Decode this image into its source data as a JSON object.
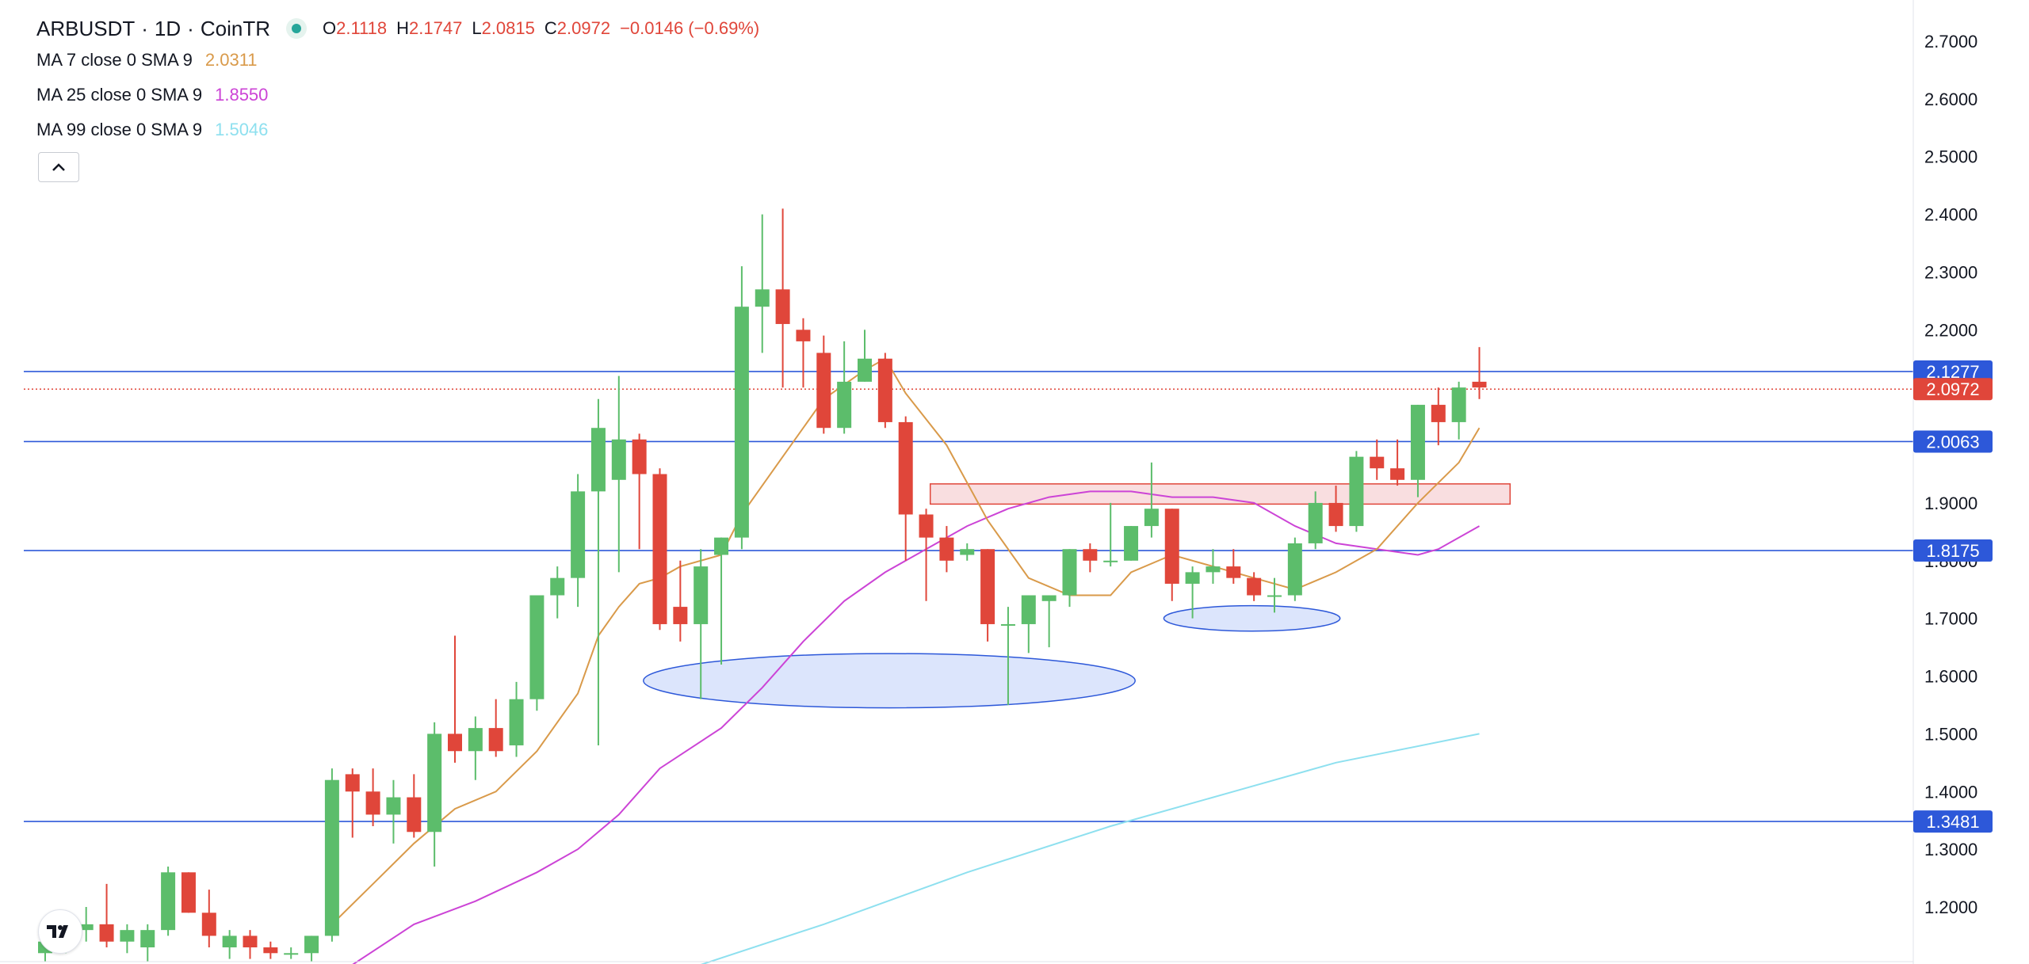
{
  "header": {
    "symbol": "ARBUSDT",
    "interval": "1D",
    "exchange": "CoinTR",
    "sep": "·",
    "ohlc": [
      {
        "key": "O",
        "value": "2.1118"
      },
      {
        "key": "H",
        "value": "2.1747"
      },
      {
        "key": "L",
        "value": "2.0815"
      },
      {
        "key": "C",
        "value": "2.0972"
      },
      {
        "key": "",
        "value": "−0.0146 (−0.69%)"
      }
    ]
  },
  "indicators": [
    {
      "label": "MA 7 close 0 SMA 9",
      "value": "2.0311",
      "color": "#d99a4a"
    },
    {
      "label": "MA 25 close 0 SMA 9",
      "value": "1.8550",
      "color": "#cc44d6"
    },
    {
      "label": "MA 99 close 0 SMA 9",
      "value": "1.5046",
      "color": "#8ee0ef"
    }
  ],
  "collapse_icon": "chevron-up-icon",
  "logo_icon": "tradingview-logo-icon",
  "colors": {
    "up": "#5cbd6b",
    "down": "#e0463a",
    "hline": "#2d58d9",
    "current": "#e0463a",
    "zone_fill": "#f7d3d6",
    "zone_stroke": "#e0463a",
    "ellipse_fill": "#d6e0fb",
    "ellipse_stroke": "#2d58d9"
  },
  "chart_data": {
    "type": "candlestick",
    "y_axis": {
      "min": 1.1,
      "max": 2.76,
      "ticks": [
        "2.7000",
        "2.6000",
        "2.5000",
        "2.4000",
        "2.3000",
        "2.2000",
        "1.9000",
        "1.8000",
        "1.7000",
        "1.6000",
        "1.5000",
        "1.4000",
        "1.3000",
        "1.2000"
      ]
    },
    "price_labels": [
      {
        "value": 2.1277,
        "text": "2.1277",
        "kind": "line"
      },
      {
        "value": 2.0972,
        "text": "2.0972",
        "kind": "current"
      },
      {
        "value": 2.0063,
        "text": "2.0063",
        "kind": "line"
      },
      {
        "value": 1.8175,
        "text": "1.8175",
        "kind": "line"
      },
      {
        "value": 1.3481,
        "text": "1.3481",
        "kind": "line"
      }
    ],
    "candles": [
      [
        1.12,
        1.15,
        1.1,
        1.14
      ],
      [
        1.14,
        1.17,
        1.12,
        1.16
      ],
      [
        1.16,
        1.2,
        1.14,
        1.17
      ],
      [
        1.17,
        1.24,
        1.13,
        1.14
      ],
      [
        1.14,
        1.17,
        1.12,
        1.16
      ],
      [
        1.13,
        1.17,
        1.1,
        1.16
      ],
      [
        1.16,
        1.27,
        1.15,
        1.26
      ],
      [
        1.26,
        1.26,
        1.19,
        1.19
      ],
      [
        1.19,
        1.23,
        1.13,
        1.15
      ],
      [
        1.13,
        1.16,
        1.11,
        1.15
      ],
      [
        1.15,
        1.16,
        1.11,
        1.13
      ],
      [
        1.13,
        1.14,
        1.11,
        1.12
      ],
      [
        1.12,
        1.13,
        1.11,
        1.12
      ],
      [
        1.12,
        1.15,
        1.09,
        1.15
      ],
      [
        1.15,
        1.44,
        1.14,
        1.42
      ],
      [
        1.43,
        1.44,
        1.32,
        1.4
      ],
      [
        1.4,
        1.44,
        1.34,
        1.36
      ],
      [
        1.36,
        1.42,
        1.31,
        1.39
      ],
      [
        1.39,
        1.43,
        1.32,
        1.33
      ],
      [
        1.33,
        1.52,
        1.27,
        1.5
      ],
      [
        1.5,
        1.67,
        1.45,
        1.47
      ],
      [
        1.47,
        1.53,
        1.42,
        1.51
      ],
      [
        1.51,
        1.56,
        1.46,
        1.47
      ],
      [
        1.48,
        1.59,
        1.46,
        1.56
      ],
      [
        1.56,
        1.73,
        1.54,
        1.74
      ],
      [
        1.74,
        1.79,
        1.7,
        1.77
      ],
      [
        1.77,
        1.95,
        1.72,
        1.92
      ],
      [
        1.92,
        2.08,
        1.48,
        2.03
      ],
      [
        1.94,
        2.12,
        1.78,
        2.01
      ],
      [
        2.01,
        2.02,
        1.82,
        1.95
      ],
      [
        1.95,
        1.96,
        1.68,
        1.69
      ],
      [
        1.72,
        1.8,
        1.66,
        1.69
      ],
      [
        1.69,
        1.82,
        1.56,
        1.79
      ],
      [
        1.81,
        1.84,
        1.62,
        1.84
      ],
      [
        1.84,
        2.31,
        1.82,
        2.24
      ],
      [
        2.24,
        2.4,
        2.16,
        2.27
      ],
      [
        2.27,
        2.41,
        2.1,
        2.21
      ],
      [
        2.2,
        2.22,
        2.1,
        2.18
      ],
      [
        2.16,
        2.19,
        2.02,
        2.03
      ],
      [
        2.03,
        2.18,
        2.02,
        2.11
      ],
      [
        2.11,
        2.2,
        2.11,
        2.15
      ],
      [
        2.15,
        2.16,
        2.03,
        2.04
      ],
      [
        2.04,
        2.05,
        1.8,
        1.88
      ],
      [
        1.88,
        1.89,
        1.73,
        1.84
      ],
      [
        1.84,
        1.86,
        1.78,
        1.8
      ],
      [
        1.81,
        1.83,
        1.8,
        1.82
      ],
      [
        1.82,
        1.82,
        1.66,
        1.69
      ],
      [
        1.69,
        1.72,
        1.55,
        1.69
      ],
      [
        1.69,
        1.74,
        1.64,
        1.74
      ],
      [
        1.73,
        1.74,
        1.65,
        1.74
      ],
      [
        1.74,
        1.82,
        1.72,
        1.82
      ],
      [
        1.82,
        1.83,
        1.78,
        1.8
      ],
      [
        1.8,
        1.9,
        1.79,
        1.8
      ],
      [
        1.8,
        1.86,
        1.8,
        1.86
      ],
      [
        1.86,
        1.97,
        1.84,
        1.89
      ],
      [
        1.89,
        1.89,
        1.73,
        1.76
      ],
      [
        1.76,
        1.79,
        1.7,
        1.78
      ],
      [
        1.78,
        1.82,
        1.76,
        1.79
      ],
      [
        1.79,
        1.82,
        1.76,
        1.77
      ],
      [
        1.77,
        1.78,
        1.73,
        1.74
      ],
      [
        1.74,
        1.77,
        1.71,
        1.74
      ],
      [
        1.74,
        1.84,
        1.73,
        1.83
      ],
      [
        1.83,
        1.92,
        1.82,
        1.9
      ],
      [
        1.9,
        1.93,
        1.85,
        1.86
      ],
      [
        1.86,
        1.99,
        1.85,
        1.98
      ],
      [
        1.98,
        2.01,
        1.94,
        1.96
      ],
      [
        1.96,
        2.01,
        1.93,
        1.94
      ],
      [
        1.94,
        2.07,
        1.91,
        2.07
      ],
      [
        2.07,
        2.1,
        2.0,
        2.04
      ],
      [
        2.04,
        2.11,
        2.01,
        2.1
      ],
      [
        2.11,
        2.17,
        2.08,
        2.1
      ]
    ],
    "ma7": [
      [
        14,
        1.17
      ],
      [
        16,
        1.24
      ],
      [
        18,
        1.31
      ],
      [
        20,
        1.37
      ],
      [
        22,
        1.4
      ],
      [
        24,
        1.47
      ],
      [
        26,
        1.57
      ],
      [
        27,
        1.67
      ],
      [
        28,
        1.72
      ],
      [
        29,
        1.76
      ],
      [
        30,
        1.77
      ],
      [
        31,
        1.79
      ],
      [
        33,
        1.81
      ],
      [
        34,
        1.88
      ],
      [
        36,
        1.98
      ],
      [
        38,
        2.08
      ],
      [
        40,
        2.13
      ],
      [
        41,
        2.15
      ],
      [
        42,
        2.09
      ],
      [
        44,
        2.0
      ],
      [
        46,
        1.87
      ],
      [
        48,
        1.77
      ],
      [
        50,
        1.74
      ],
      [
        52,
        1.74
      ],
      [
        53,
        1.78
      ],
      [
        55,
        1.81
      ],
      [
        57,
        1.79
      ],
      [
        59,
        1.77
      ],
      [
        61,
        1.75
      ],
      [
        63,
        1.78
      ],
      [
        65,
        1.82
      ],
      [
        67,
        1.9
      ],
      [
        69,
        1.97
      ],
      [
        70,
        2.03
      ]
    ],
    "ma25": [
      [
        15,
        1.1
      ],
      [
        18,
        1.17
      ],
      [
        21,
        1.21
      ],
      [
        24,
        1.26
      ],
      [
        26,
        1.3
      ],
      [
        28,
        1.36
      ],
      [
        30,
        1.44
      ],
      [
        33,
        1.51
      ],
      [
        35,
        1.58
      ],
      [
        37,
        1.66
      ],
      [
        39,
        1.73
      ],
      [
        41,
        1.78
      ],
      [
        43,
        1.82
      ],
      [
        45,
        1.86
      ],
      [
        47,
        1.89
      ],
      [
        49,
        1.91
      ],
      [
        51,
        1.92
      ],
      [
        53,
        1.92
      ],
      [
        55,
        1.91
      ],
      [
        57,
        1.91
      ],
      [
        59,
        1.9
      ],
      [
        61,
        1.86
      ],
      [
        63,
        1.83
      ],
      [
        65,
        1.82
      ],
      [
        67,
        1.81
      ],
      [
        68,
        1.82
      ],
      [
        70,
        1.86
      ]
    ],
    "ma99": [
      [
        32,
        1.1
      ],
      [
        38,
        1.17
      ],
      [
        45,
        1.26
      ],
      [
        52,
        1.34
      ],
      [
        58,
        1.4
      ],
      [
        63,
        1.45
      ],
      [
        70,
        1.5
      ]
    ],
    "zones": [
      {
        "x1": 43.2,
        "x2": 71.5,
        "y_top": 1.933,
        "y_bottom": 1.898
      }
    ],
    "ellipses": [
      {
        "cx": 41.2,
        "rx": 12.0,
        "cy": 1.592,
        "ry": 0.047
      },
      {
        "cx": 58.9,
        "rx": 4.3,
        "cy": 1.7,
        "ry": 0.022
      }
    ]
  }
}
